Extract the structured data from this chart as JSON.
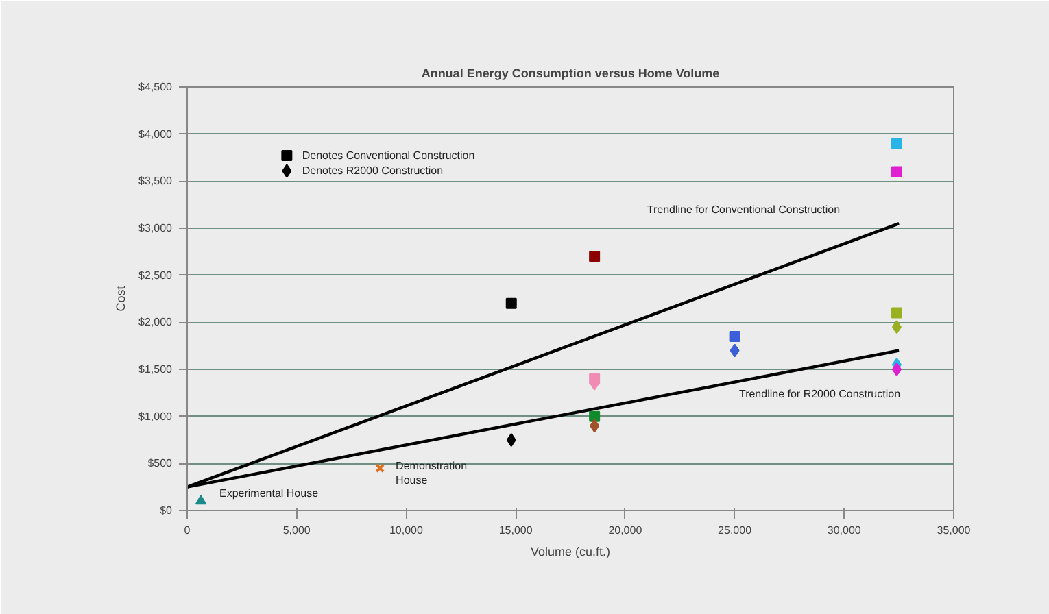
{
  "chart_data": {
    "type": "scatter",
    "title": "Annual Energy Consumption versus Home Volume",
    "xlabel": "Volume (cu.ft.)",
    "ylabel": "Cost",
    "xlim": [
      0,
      35000
    ],
    "xticks": [
      0,
      {
        "value": 5000,
        "label": "5,000"
      },
      {
        "value": 10000,
        "label": "10,000"
      },
      {
        "value": 15000,
        "label": "15,000"
      },
      {
        "value": 20000,
        "label": "20,000"
      },
      {
        "value": 25000,
        "label": "25,000"
      },
      {
        "value": 30000,
        "label": "30,000"
      },
      {
        "value": 35000,
        "label": "35,000"
      }
    ],
    "ylim": [
      0,
      4500
    ],
    "yticks": [
      {
        "value": 0,
        "label": "$0"
      },
      {
        "value": 500,
        "label": "$500"
      },
      {
        "value": 1000,
        "label": "$1,000"
      },
      {
        "value": 1500,
        "label": "$1,500"
      },
      {
        "value": 2000,
        "label": "$2,000"
      },
      {
        "value": 2500,
        "label": "$2,500"
      },
      {
        "value": 3000,
        "label": "$3,000"
      },
      {
        "value": 3500,
        "label": "$3,500"
      },
      {
        "value": 4000,
        "label": "$4,000"
      },
      {
        "value": 4500,
        "label": "$4,500"
      }
    ],
    "grid": "y",
    "legend": "top left",
    "series": [
      {
        "name": "Denotes Conventional Construction",
        "marker": "square",
        "x": [
          14800,
          18600,
          18600,
          18600,
          25000,
          32400,
          32400,
          32400
        ],
        "values": [
          2200,
          2700,
          1400,
          1000,
          1850,
          3900,
          3600,
          2100
        ],
        "colors": [
          "#000000",
          "#8b0000",
          "#f08cb4",
          "#108a2a",
          "#3a5fd8",
          "#28b4e8",
          "#e020d0",
          "#9ab020"
        ]
      },
      {
        "name": "Denotes R2000 Construction",
        "marker": "diamond",
        "x": [
          14800,
          18600,
          18600,
          25000,
          32400,
          32400,
          32400
        ],
        "values": [
          750,
          900,
          1350,
          1700,
          1950,
          1550,
          1500
        ],
        "colors": [
          "#000000",
          "#a0522d",
          "#f08cb4",
          "#3a5fd8",
          "#9ab020",
          "#28b4e8",
          "#e020d0"
        ]
      },
      {
        "marker": "triangle",
        "x": [
          625
        ],
        "values": [
          100
        ],
        "color": "#1a8a8a"
      },
      {
        "marker": "cross",
        "x": [
          8800
        ],
        "values": [
          450
        ],
        "color": "#e07020"
      },
      {
        "type": "line",
        "marker": "none",
        "x": [
          0,
          32500
        ],
        "values": [
          250,
          3050
        ],
        "color": "#000000"
      },
      {
        "type": "line",
        "marker": "none",
        "x": [
          0,
          32500
        ],
        "values": [
          250,
          1700
        ],
        "color": "#000000"
      }
    ],
    "annotations": [
      "Trendline for Conventional Construction",
      "Trendline for R2000 Construction",
      "Experimental House",
      "Demonstration\nHouse"
    ]
  }
}
